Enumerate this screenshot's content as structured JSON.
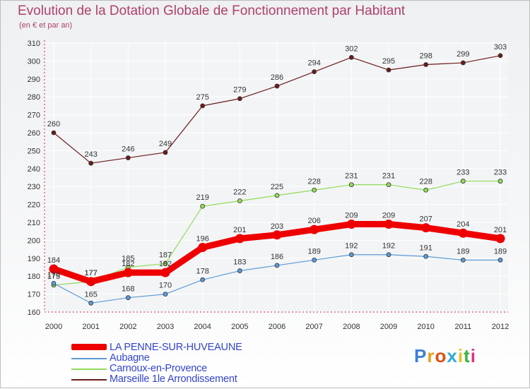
{
  "title": "Evolution de la Dotation Globale de Fonctionnement par Habitant",
  "subtitle": "(en € et par an)",
  "logo": {
    "letters": [
      "P",
      "r",
      "o",
      "x",
      "i",
      "t",
      "i"
    ],
    "colors": [
      "#3f7fd8",
      "#e8a020",
      "#e05010",
      "#30a8e0",
      "#e8c020",
      "#40b040",
      "#e03080"
    ]
  },
  "chart_data": {
    "type": "line",
    "title": "Evolution de la Dotation Globale de Fonctionnement par Habitant",
    "subtitle": "(en € et par an)",
    "x": [
      "2000",
      "2001",
      "2002",
      "2003",
      "2004",
      "2005",
      "2006",
      "2007",
      "2008",
      "2009",
      "2010",
      "2011",
      "2012"
    ],
    "ylim": [
      160,
      310
    ],
    "yticks": [
      "160",
      "170",
      "180",
      "190",
      "200",
      "210",
      "220",
      "230",
      "240",
      "250",
      "260",
      "270",
      "280",
      "290",
      "300",
      "310"
    ],
    "series": [
      {
        "name": "LA PENNE-SUR-HUVEAUNE",
        "color": "#ee0000",
        "width": 9,
        "values": [
          184,
          177,
          182,
          182,
          196,
          201,
          203,
          206,
          209,
          209,
          207,
          204,
          201
        ],
        "labels": [
          "184",
          "177",
          "182",
          "182",
          "196",
          "201",
          "203",
          "206",
          "209",
          "209",
          "207",
          "204",
          "201"
        ]
      },
      {
        "name": "Aubagne",
        "color": "#5b9bd5",
        "width": 1.2,
        "values": [
          176,
          165,
          168,
          170,
          178,
          183,
          186,
          189,
          192,
          192,
          191,
          189,
          189
        ],
        "labels": [
          "176",
          "165",
          "168",
          "170",
          "178",
          "183",
          "186",
          "189",
          "192",
          "192",
          "191",
          "189",
          "189"
        ]
      },
      {
        "name": "Carnoux-en-Provence",
        "color": "#8fdc5a",
        "width": 1.2,
        "values": [
          175,
          177,
          185,
          187,
          219,
          222,
          225,
          228,
          231,
          231,
          228,
          233,
          233
        ],
        "labels": [
          "175",
          "177",
          "185",
          "187",
          "219",
          "222",
          "225",
          "228",
          "231",
          "231",
          "228",
          "233",
          "233"
        ]
      },
      {
        "name": "Marseille 1le  Arrondissement",
        "color": "#6b1c1c",
        "width": 1.2,
        "values": [
          260,
          243,
          246,
          249,
          275,
          279,
          286,
          294,
          302,
          295,
          298,
          299,
          303
        ],
        "labels": [
          "260",
          "243",
          "246",
          "249",
          "275",
          "279",
          "286",
          "294",
          "302",
          "295",
          "298",
          "299",
          "303"
        ]
      }
    ]
  }
}
